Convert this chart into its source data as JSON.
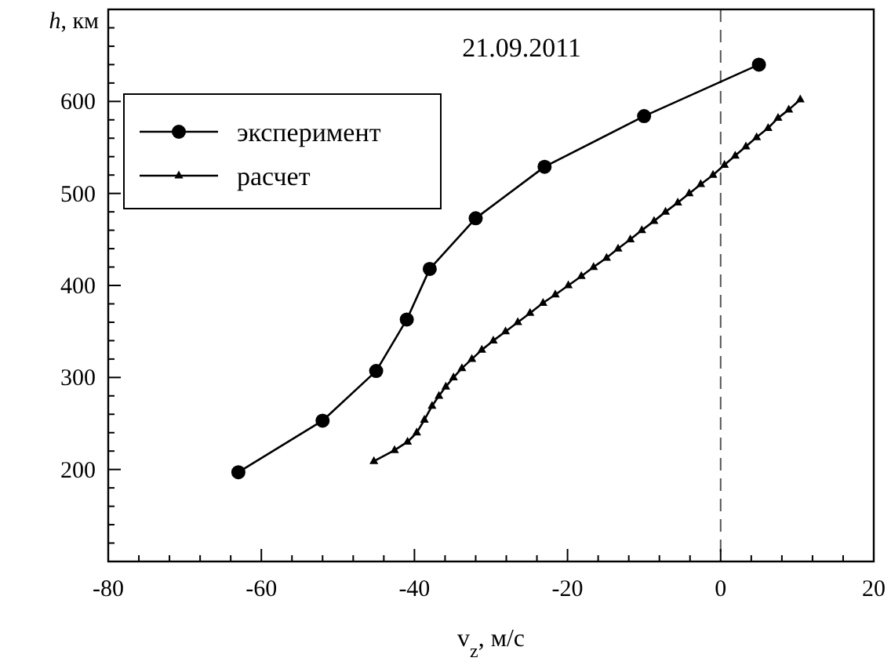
{
  "chart_data": {
    "type": "line",
    "title": "21.09.2011",
    "xlabel": "v$_{z}$, м/с",
    "ylabel": "h, км",
    "xlim": [
      -80,
      20
    ],
    "ylim": [
      100,
      700
    ],
    "xticks": [
      -80,
      {
        "value": -76,
        "label": null
      },
      {
        "value": -72,
        "label": null
      },
      {
        "value": -68,
        "label": null
      },
      {
        "value": -64,
        "label": null
      },
      -60,
      {
        "value": -56,
        "label": null
      },
      {
        "value": -52,
        "label": null
      },
      {
        "value": -48,
        "label": null
      },
      {
        "value": -44,
        "label": null
      },
      -40,
      {
        "value": -36,
        "label": null
      },
      {
        "value": -32,
        "label": null
      },
      {
        "value": -28,
        "label": null
      },
      {
        "value": -24,
        "label": null
      },
      -20,
      {
        "value": -16,
        "label": null
      },
      {
        "value": -12,
        "label": null
      },
      {
        "value": -8,
        "label": null
      },
      {
        "value": -4,
        "label": null
      },
      0,
      {
        "value": 4,
        "label": null
      },
      {
        "value": 8,
        "label": null
      },
      {
        "value": 12,
        "label": null
      },
      {
        "value": 16,
        "label": null
      },
      20
    ],
    "yticks": [
      {
        "value": 100,
        "label": null
      },
      {
        "value": 120,
        "label": null
      },
      {
        "value": 140,
        "label": null
      },
      {
        "value": 160,
        "label": null
      },
      {
        "value": 180,
        "label": null
      },
      200,
      {
        "value": 220,
        "label": null
      },
      {
        "value": 240,
        "label": null
      },
      {
        "value": 260,
        "label": null
      },
      {
        "value": 280,
        "label": null
      },
      300,
      {
        "value": 320,
        "label": null
      },
      {
        "value": 340,
        "label": null
      },
      {
        "value": 360,
        "label": null
      },
      {
        "value": 380,
        "label": null
      },
      400,
      {
        "value": 420,
        "label": null
      },
      {
        "value": 440,
        "label": null
      },
      {
        "value": 460,
        "label": null
      },
      {
        "value": 480,
        "label": null
      },
      500,
      {
        "value": 520,
        "label": null
      },
      {
        "value": 540,
        "label": null
      },
      {
        "value": 560,
        "label": null
      },
      {
        "value": 580,
        "label": null
      },
      600,
      {
        "value": 620,
        "label": null
      },
      {
        "value": 640,
        "label": null
      },
      {
        "value": 660,
        "label": null
      },
      {
        "value": 680,
        "label": null
      },
      {
        "value": 700,
        "label": null
      }
    ],
    "grid": false,
    "legend": "top left",
    "line_style": "solid",
    "ref_lines": [
      {
        "axis": "x",
        "value": 0,
        "line_style": "dashed",
        "color": "#555555"
      }
    ],
    "series": [
      {
        "name": "эксперимент",
        "color": "#000000",
        "marker": "circle",
        "x": [
          -63,
          -52,
          -45,
          -41,
          -38,
          -32,
          -23,
          -10,
          5
        ],
        "values": [
          197,
          253,
          307,
          363,
          418,
          473,
          529,
          584,
          640
        ]
      },
      {
        "name": "расчет",
        "color": "#000000",
        "marker": "triangle",
        "x": [
          -45.3,
          -42.6,
          -40.9,
          -39.7,
          -38.7,
          -37.7,
          -36.8,
          -35.9,
          -34.9,
          -33.8,
          -32.5,
          -31.2,
          -29.7,
          -28.1,
          -26.5,
          -24.9,
          -23.2,
          -21.6,
          -19.9,
          -18.2,
          -16.6,
          -14.9,
          -13.4,
          -11.8,
          -10.3,
          -8.7,
          -7.2,
          -5.6,
          -4.1,
          -2.6,
          -1.0,
          0.5,
          1.9,
          3.3,
          4.7,
          6.2,
          7.5,
          8.9,
          10.4
        ],
        "values": [
          209,
          221,
          230,
          240,
          254,
          269,
          280,
          290,
          300,
          310,
          320,
          330,
          340,
          350,
          360,
          370,
          381,
          390,
          400,
          410,
          420,
          430,
          440,
          450,
          460,
          470,
          480,
          490,
          500,
          510,
          520,
          531,
          541,
          551,
          561,
          571,
          582,
          591,
          602
        ]
      }
    ]
  }
}
